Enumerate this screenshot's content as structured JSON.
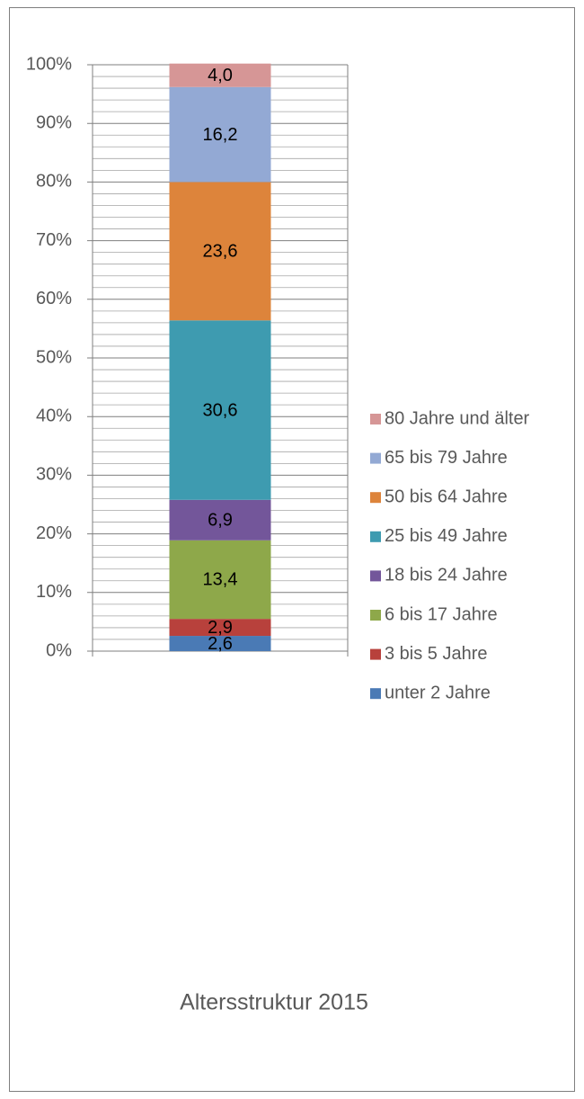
{
  "chart_data": {
    "type": "stacked_bar",
    "categories": [
      "Altersstruktur 2015"
    ],
    "series": [
      {
        "name": "unter 2 Jahre",
        "color": "#4a7ab5",
        "values": [
          2.6
        ],
        "value_labels": [
          "2,6"
        ]
      },
      {
        "name": "3 bis 5 Jahre",
        "color": "#b8413c",
        "values": [
          2.9
        ],
        "value_labels": [
          "2,9"
        ]
      },
      {
        "name": "6 bis 17 Jahre",
        "color": "#8ea84a",
        "values": [
          13.4
        ],
        "value_labels": [
          "13,4"
        ]
      },
      {
        "name": "18 bis 24 Jahre",
        "color": "#73569a",
        "values": [
          6.9
        ],
        "value_labels": [
          "6,9"
        ]
      },
      {
        "name": "25 bis 49 Jahre",
        "color": "#3e9bb0",
        "values": [
          30.6
        ],
        "value_labels": [
          "30,6"
        ]
      },
      {
        "name": "50 bis 64 Jahre",
        "color": "#dd843b",
        "values": [
          23.6
        ],
        "value_labels": [
          "23,6"
        ]
      },
      {
        "name": "65 bis 79 Jahre",
        "color": "#93a9d4",
        "values": [
          16.2
        ],
        "value_labels": [
          "16,2"
        ]
      },
      {
        "name": "80 Jahre und älter",
        "color": "#d69696",
        "values": [
          4.0
        ],
        "value_labels": [
          "4,0"
        ]
      }
    ],
    "ylim": [
      0,
      100
    ],
    "yticks": [
      {
        "value": 0,
        "label": "0%"
      },
      {
        "value": 10,
        "label": "10%"
      },
      {
        "value": 20,
        "label": "20%"
      },
      {
        "value": 30,
        "label": "30%"
      },
      {
        "value": 40,
        "label": "40%"
      },
      {
        "value": 50,
        "label": "50%"
      },
      {
        "value": 60,
        "label": "60%"
      },
      {
        "value": 70,
        "label": "70%"
      },
      {
        "value": 80,
        "label": "80%"
      },
      {
        "value": 90,
        "label": "90%"
      },
      {
        "value": 100,
        "label": "100%"
      }
    ],
    "minor_yticks": [
      2,
      4,
      6,
      8,
      12,
      14,
      16,
      18,
      22,
      24,
      26,
      28,
      32,
      34,
      36,
      38,
      42,
      44,
      46,
      48,
      52,
      54,
      56,
      58,
      62,
      64,
      66,
      68,
      72,
      74,
      76,
      78,
      82,
      84,
      86,
      88,
      92,
      94,
      96,
      98
    ],
    "grid": true,
    "legend": "right"
  }
}
